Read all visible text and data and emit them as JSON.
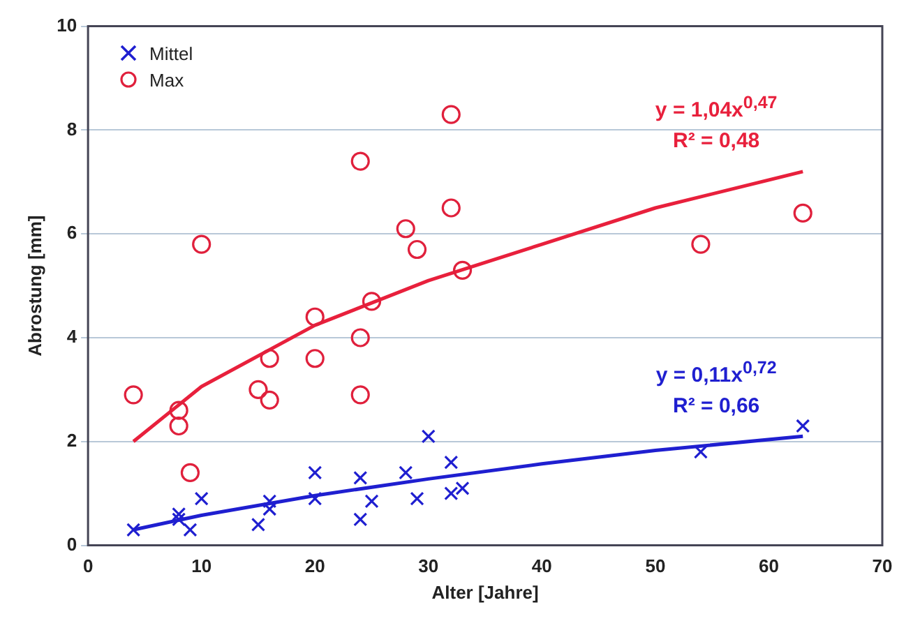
{
  "chart_data": {
    "type": "scatter",
    "xlabel": "Alter [Jahre]",
    "ylabel": "Abrostung [mm]",
    "xlim": [
      0,
      70
    ],
    "xticks": [
      0,
      10,
      20,
      30,
      40,
      50,
      60,
      70
    ],
    "ylim": [
      0,
      10
    ],
    "yticks": [
      0,
      2,
      4,
      6,
      8,
      10
    ],
    "grid": "y",
    "legend": "top left",
    "series": [
      {
        "name": "Mittel",
        "type": "scatter",
        "marker": "cross",
        "color": "#1f1fd0",
        "x": [
          4,
          8,
          8,
          9,
          10,
          15,
          16,
          16,
          20,
          20,
          24,
          24,
          25,
          28,
          29,
          30,
          32,
          32,
          33,
          54,
          63
        ],
        "values": [
          0.3,
          0.5,
          0.6,
          0.3,
          0.9,
          0.4,
          0.7,
          0.85,
          0.9,
          1.4,
          0.5,
          1.3,
          0.85,
          1.4,
          0.9,
          2.1,
          1.0,
          1.6,
          1.1,
          1.8,
          2.3
        ]
      },
      {
        "name": "Max",
        "type": "scatter",
        "marker": "circle",
        "color": "#e0203c",
        "x": [
          4,
          8,
          8,
          9,
          10,
          15,
          16,
          16,
          20,
          20,
          24,
          24,
          24,
          25,
          28,
          29,
          32,
          32,
          33,
          54,
          63
        ],
        "values": [
          2.9,
          2.6,
          2.3,
          1.4,
          5.8,
          3.0,
          2.8,
          3.6,
          3.6,
          4.4,
          7.4,
          4.0,
          2.9,
          4.7,
          6.1,
          5.7,
          8.3,
          6.5,
          5.3,
          5.8,
          6.4
        ]
      },
      {
        "type": "line",
        "marker": "none",
        "color": "#1f1fd0",
        "x": [
          4,
          10,
          20,
          30,
          40,
          50,
          63
        ],
        "values": [
          0.3,
          0.58,
          0.96,
          1.28,
          1.57,
          1.83,
          2.1
        ]
      },
      {
        "type": "line",
        "marker": "none",
        "color": "#e8203c",
        "x": [
          4,
          10,
          20,
          30,
          40,
          50,
          63
        ],
        "values": [
          2.0,
          3.06,
          4.24,
          5.1,
          5.8,
          6.5,
          7.2
        ]
      }
    ],
    "annotations": [
      "y = 1,04x$^{0,47}$",
      "R² = 0,48",
      "y = 0,11x$^{0,72}$",
      "R² = 0,66"
    ]
  }
}
